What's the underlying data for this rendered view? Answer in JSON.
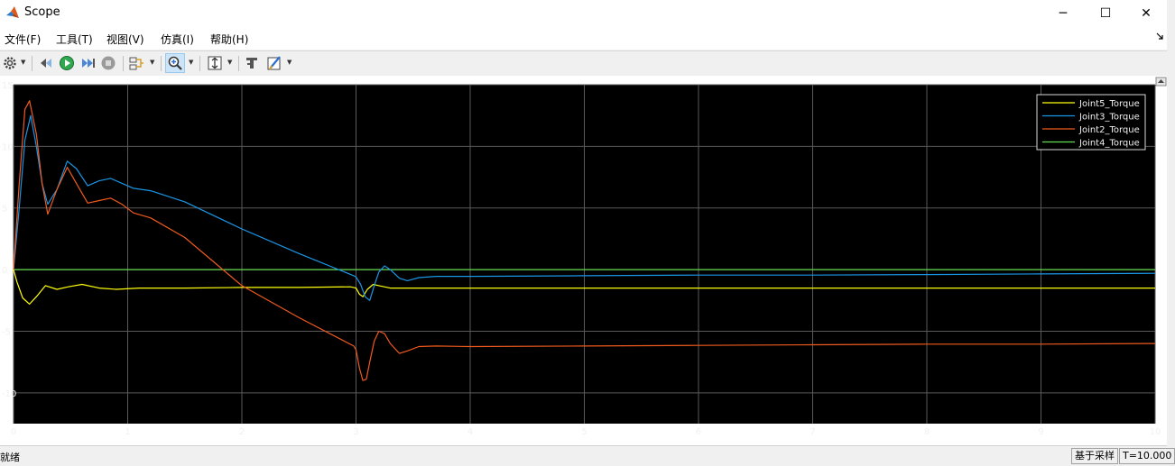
{
  "window": {
    "title": "Scope",
    "minimize_glyph": "─",
    "maximize_glyph": "☐",
    "close_glyph": "✕"
  },
  "menu": {
    "items": [
      "文件(F)",
      "工具(T)",
      "视图(V)",
      "仿真(I)",
      "帮助(H)"
    ]
  },
  "toolbar": {
    "icons": [
      "gear-icon",
      "step-back-icon",
      "run-icon",
      "step-forward-icon",
      "stop-icon",
      "signal-select-icon",
      "zoom-in-icon",
      "autoscale-icon",
      "highlight-block-icon",
      "style-icon"
    ]
  },
  "colors": {
    "plot_background": "#000000",
    "grid": "#5a5a5a",
    "axis_text": "#f0f0f0",
    "joint5": "#ffff0a",
    "joint3": "#1a96e6",
    "joint2": "#f05a1e",
    "joint4": "#64dc50"
  },
  "chart_data": {
    "type": "line",
    "xlim": [
      0,
      10
    ],
    "ylim": [
      -12.5,
      15
    ],
    "xticks": [
      "0",
      "1",
      "2",
      "3",
      "4",
      "5",
      "6",
      "7",
      "8",
      "9",
      "10"
    ],
    "yticks": [
      "15",
      "10",
      "5",
      "0",
      "-5",
      "-10"
    ],
    "grid": true,
    "legend_position": "top-right",
    "series": [
      {
        "name": "Joint5_Torque",
        "color": "#ffff0a",
        "x": [
          0,
          0.03,
          0.08,
          0.14,
          0.2,
          0.28,
          0.38,
          0.48,
          0.6,
          0.75,
          0.9,
          1.1,
          1.5,
          2.0,
          2.5,
          2.95,
          3.0,
          3.03,
          3.06,
          3.1,
          3.15,
          3.2,
          3.3,
          3.5,
          4,
          5,
          6,
          7,
          8,
          9,
          10
        ],
        "y": [
          0,
          -1.0,
          -2.3,
          -2.8,
          -2.2,
          -1.3,
          -1.6,
          -1.4,
          -1.2,
          -1.5,
          -1.6,
          -1.5,
          -1.5,
          -1.45,
          -1.45,
          -1.4,
          -1.5,
          -2.0,
          -2.2,
          -1.6,
          -1.2,
          -1.3,
          -1.5,
          -1.5,
          -1.5,
          -1.5,
          -1.5,
          -1.5,
          -1.5,
          -1.5,
          -1.5
        ]
      },
      {
        "name": "Joint3_Torque",
        "color": "#1a96e6",
        "x": [
          0,
          0.05,
          0.1,
          0.15,
          0.2,
          0.25,
          0.3,
          0.38,
          0.47,
          0.55,
          0.65,
          0.75,
          0.85,
          0.95,
          1.05,
          1.2,
          1.5,
          2.0,
          2.5,
          2.98,
          3.0,
          3.04,
          3.08,
          3.12,
          3.16,
          3.2,
          3.25,
          3.3,
          3.38,
          3.45,
          3.55,
          3.7,
          4,
          5,
          6,
          7,
          8,
          9,
          10
        ],
        "y": [
          0,
          5,
          10.5,
          12.5,
          10,
          7,
          5.3,
          6.5,
          8.8,
          8.2,
          6.8,
          7.2,
          7.4,
          7.0,
          6.6,
          6.4,
          5.5,
          3.3,
          1.3,
          -0.5,
          -0.6,
          -1.2,
          -2.2,
          -2.5,
          -1.3,
          -0.2,
          0.3,
          0,
          -0.7,
          -0.9,
          -0.65,
          -0.55,
          -0.55,
          -0.5,
          -0.45,
          -0.45,
          -0.4,
          -0.35,
          -0.3
        ]
      },
      {
        "name": "Joint2_Torque",
        "color": "#f05a1e",
        "x": [
          0,
          0.05,
          0.1,
          0.14,
          0.2,
          0.25,
          0.3,
          0.38,
          0.47,
          0.55,
          0.65,
          0.75,
          0.85,
          0.95,
          1.05,
          1.2,
          1.5,
          2.0,
          2.5,
          2.98,
          3.0,
          3.03,
          3.06,
          3.09,
          3.12,
          3.16,
          3.2,
          3.25,
          3.3,
          3.38,
          3.45,
          3.55,
          3.7,
          4,
          5,
          6,
          7,
          8,
          9,
          10
        ],
        "y": [
          0,
          7,
          13,
          13.7,
          11,
          7,
          4.5,
          6.5,
          8.3,
          7.0,
          5.4,
          5.6,
          5.8,
          5.3,
          4.6,
          4.2,
          2.6,
          -1.3,
          -3.9,
          -6.2,
          -6.5,
          -8.0,
          -9.0,
          -8.9,
          -7.5,
          -5.8,
          -5.0,
          -5.2,
          -6.0,
          -6.8,
          -6.6,
          -6.25,
          -6.2,
          -6.25,
          -6.2,
          -6.15,
          -6.1,
          -6.05,
          -6.05,
          -6.0
        ]
      },
      {
        "name": "Joint4_Torque",
        "color": "#64dc50",
        "x": [
          0,
          10
        ],
        "y": [
          0,
          0
        ]
      }
    ]
  },
  "status": {
    "left": "就绪",
    "mode": "基于采样",
    "time": "T=10.000"
  }
}
